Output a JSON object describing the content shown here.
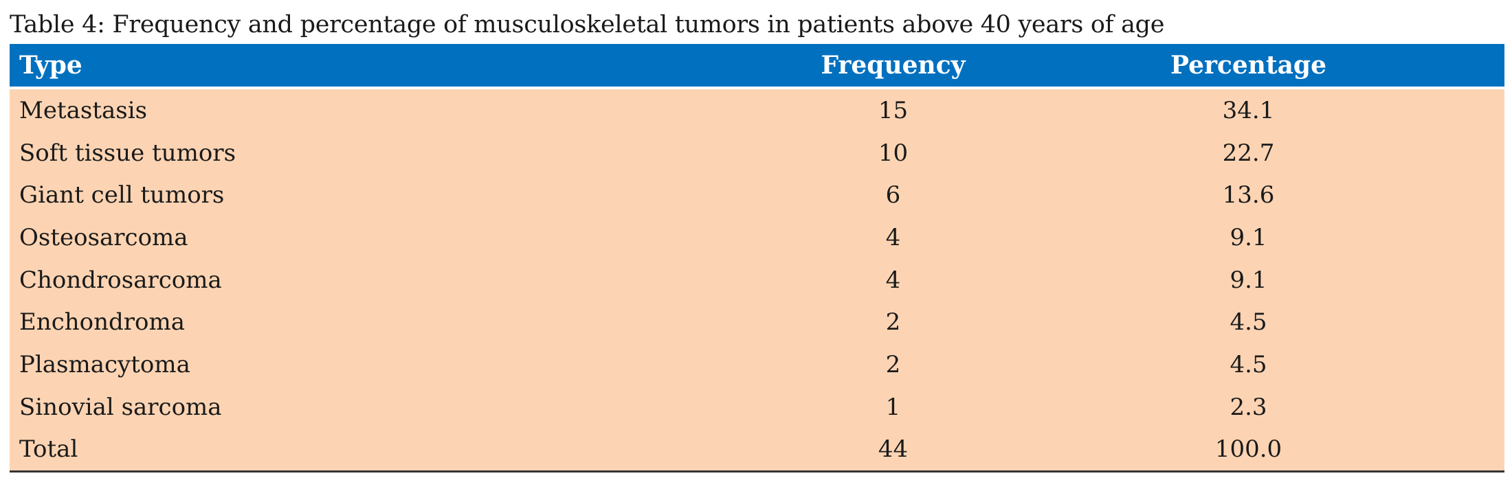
{
  "caption": "Table 4: Frequency and percentage of musculoskeletal tumors in patients above 40 years of age",
  "colors": {
    "header_background": "#0070bf",
    "header_text": "#ffffff",
    "body_background": "#fcd4b3"
  },
  "table": {
    "headers": [
      "Type",
      "Frequency",
      "Percentage"
    ],
    "rows": [
      [
        "Metastasis",
        "15",
        "34.1"
      ],
      [
        "Soft tissue tumors",
        "10",
        "22.7"
      ],
      [
        "Giant cell tumors",
        "6",
        "13.6"
      ],
      [
        "Osteosarcoma",
        "4",
        "9.1"
      ],
      [
        "Chondrosarcoma",
        "4",
        "9.1"
      ],
      [
        "Enchondroma",
        "2",
        "4.5"
      ],
      [
        "Plasmacytoma",
        "2",
        "4.5"
      ],
      [
        "Sinovial sarcoma",
        "1",
        "2.3"
      ],
      [
        "Total",
        "44",
        "100.0"
      ]
    ]
  }
}
